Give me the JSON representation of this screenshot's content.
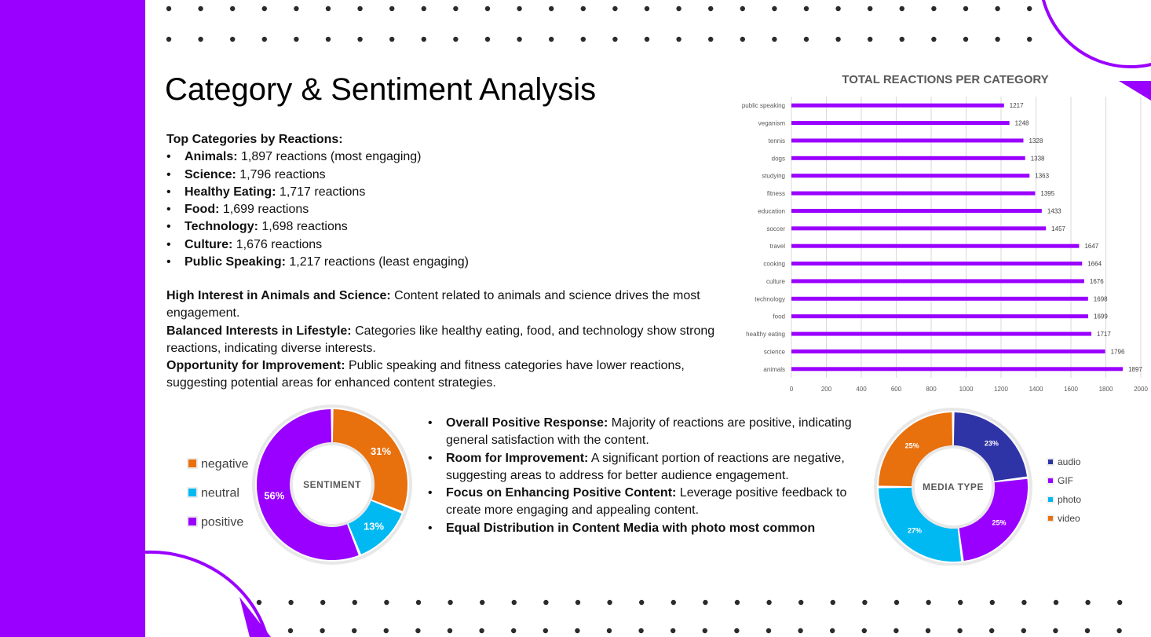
{
  "slide": {
    "title": "Category & Sentiment Analysis",
    "colors": {
      "accent": "#9a00ff",
      "bar": "#9a00ff",
      "dots": "#2b2b2b"
    }
  },
  "top_categories": {
    "heading": "Top Categories by Reactions:",
    "items": [
      {
        "name": "Animals:",
        "text": " 1,897 reactions (most engaging)"
      },
      {
        "name": "Science:",
        "text": " 1,796 reactions"
      },
      {
        "name": "Healthy Eating:",
        "text": " 1,717 reactions"
      },
      {
        "name": "Food:",
        "text": " 1,699 reactions"
      },
      {
        "name": "Technology:",
        "text": " 1,698 reactions"
      },
      {
        "name": "Culture:",
        "text": " 1,676 reactions"
      },
      {
        "name": "Public Speaking:",
        "text": " 1,217 reactions (least engaging)"
      }
    ]
  },
  "insights": [
    {
      "label": "High Interest in Animals and Science:",
      "text": " Content related to animals and science drives the most engagement."
    },
    {
      "label": "Balanced Interests in Lifestyle:",
      "text": " Categories like healthy eating, food, and technology show strong reactions, indicating diverse interests."
    },
    {
      "label": "Opportunity for Improvement:",
      "text": " Public speaking and fitness categories have lower reactions, suggesting potential areas for enhanced content strategies."
    }
  ],
  "sentiment_points": [
    {
      "label": "Overall Positive Response:",
      "text": " Majority of reactions are positive, indicating general satisfaction with the content."
    },
    {
      "label": "Room for Improvement:",
      "text": " A significant portion of reactions are negative, suggesting areas to address for better audience engagement."
    },
    {
      "label": "Focus on Enhancing Positive Content:",
      "text": " Leverage positive feedback to create more engaging and appealing content."
    },
    {
      "label": "Equal Distribution in Content Media with photo most common",
      "text": ""
    }
  ],
  "chart_data": [
    {
      "type": "bar",
      "orientation": "horizontal",
      "title": "TOTAL REACTIONS PER CATEGORY",
      "categories": [
        "public speaking",
        "veganism",
        "tennis",
        "dogs",
        "studying",
        "fitness",
        "education",
        "soccer",
        "travel",
        "cooking",
        "culture",
        "technology",
        "food",
        "healthy eating",
        "science",
        "animals"
      ],
      "values": [
        1217,
        1248,
        1328,
        1338,
        1363,
        1395,
        1433,
        1457,
        1647,
        1664,
        1676,
        1698,
        1699,
        1717,
        1796,
        1897
      ],
      "xlim": [
        0,
        2000
      ],
      "xticks": [
        0,
        200,
        400,
        600,
        800,
        1000,
        1200,
        1400,
        1600,
        1800,
        2000
      ],
      "grid": true,
      "data_labels": true,
      "color": "#9a00ff"
    },
    {
      "type": "pie",
      "variant": "donut",
      "center_label": "SENTIMENT",
      "categories": [
        "negative",
        "neutral",
        "positive"
      ],
      "values": [
        31,
        13,
        56
      ],
      "value_labels": [
        "31%",
        "13%",
        "56%"
      ],
      "colors": [
        "#e8700d",
        "#00b9f2",
        "#9a00ff"
      ],
      "legend": "left"
    },
    {
      "type": "pie",
      "variant": "donut",
      "center_label": "MEDIA TYPE",
      "categories": [
        "audio",
        "GIF",
        "photo",
        "video"
      ],
      "values": [
        23,
        25,
        27,
        25
      ],
      "value_labels": [
        "23%",
        "25%",
        "27%",
        "25%"
      ],
      "colors": [
        "#2e33a6",
        "#9a00ff",
        "#00b9f2",
        "#e8700d"
      ],
      "legend": "right"
    }
  ]
}
